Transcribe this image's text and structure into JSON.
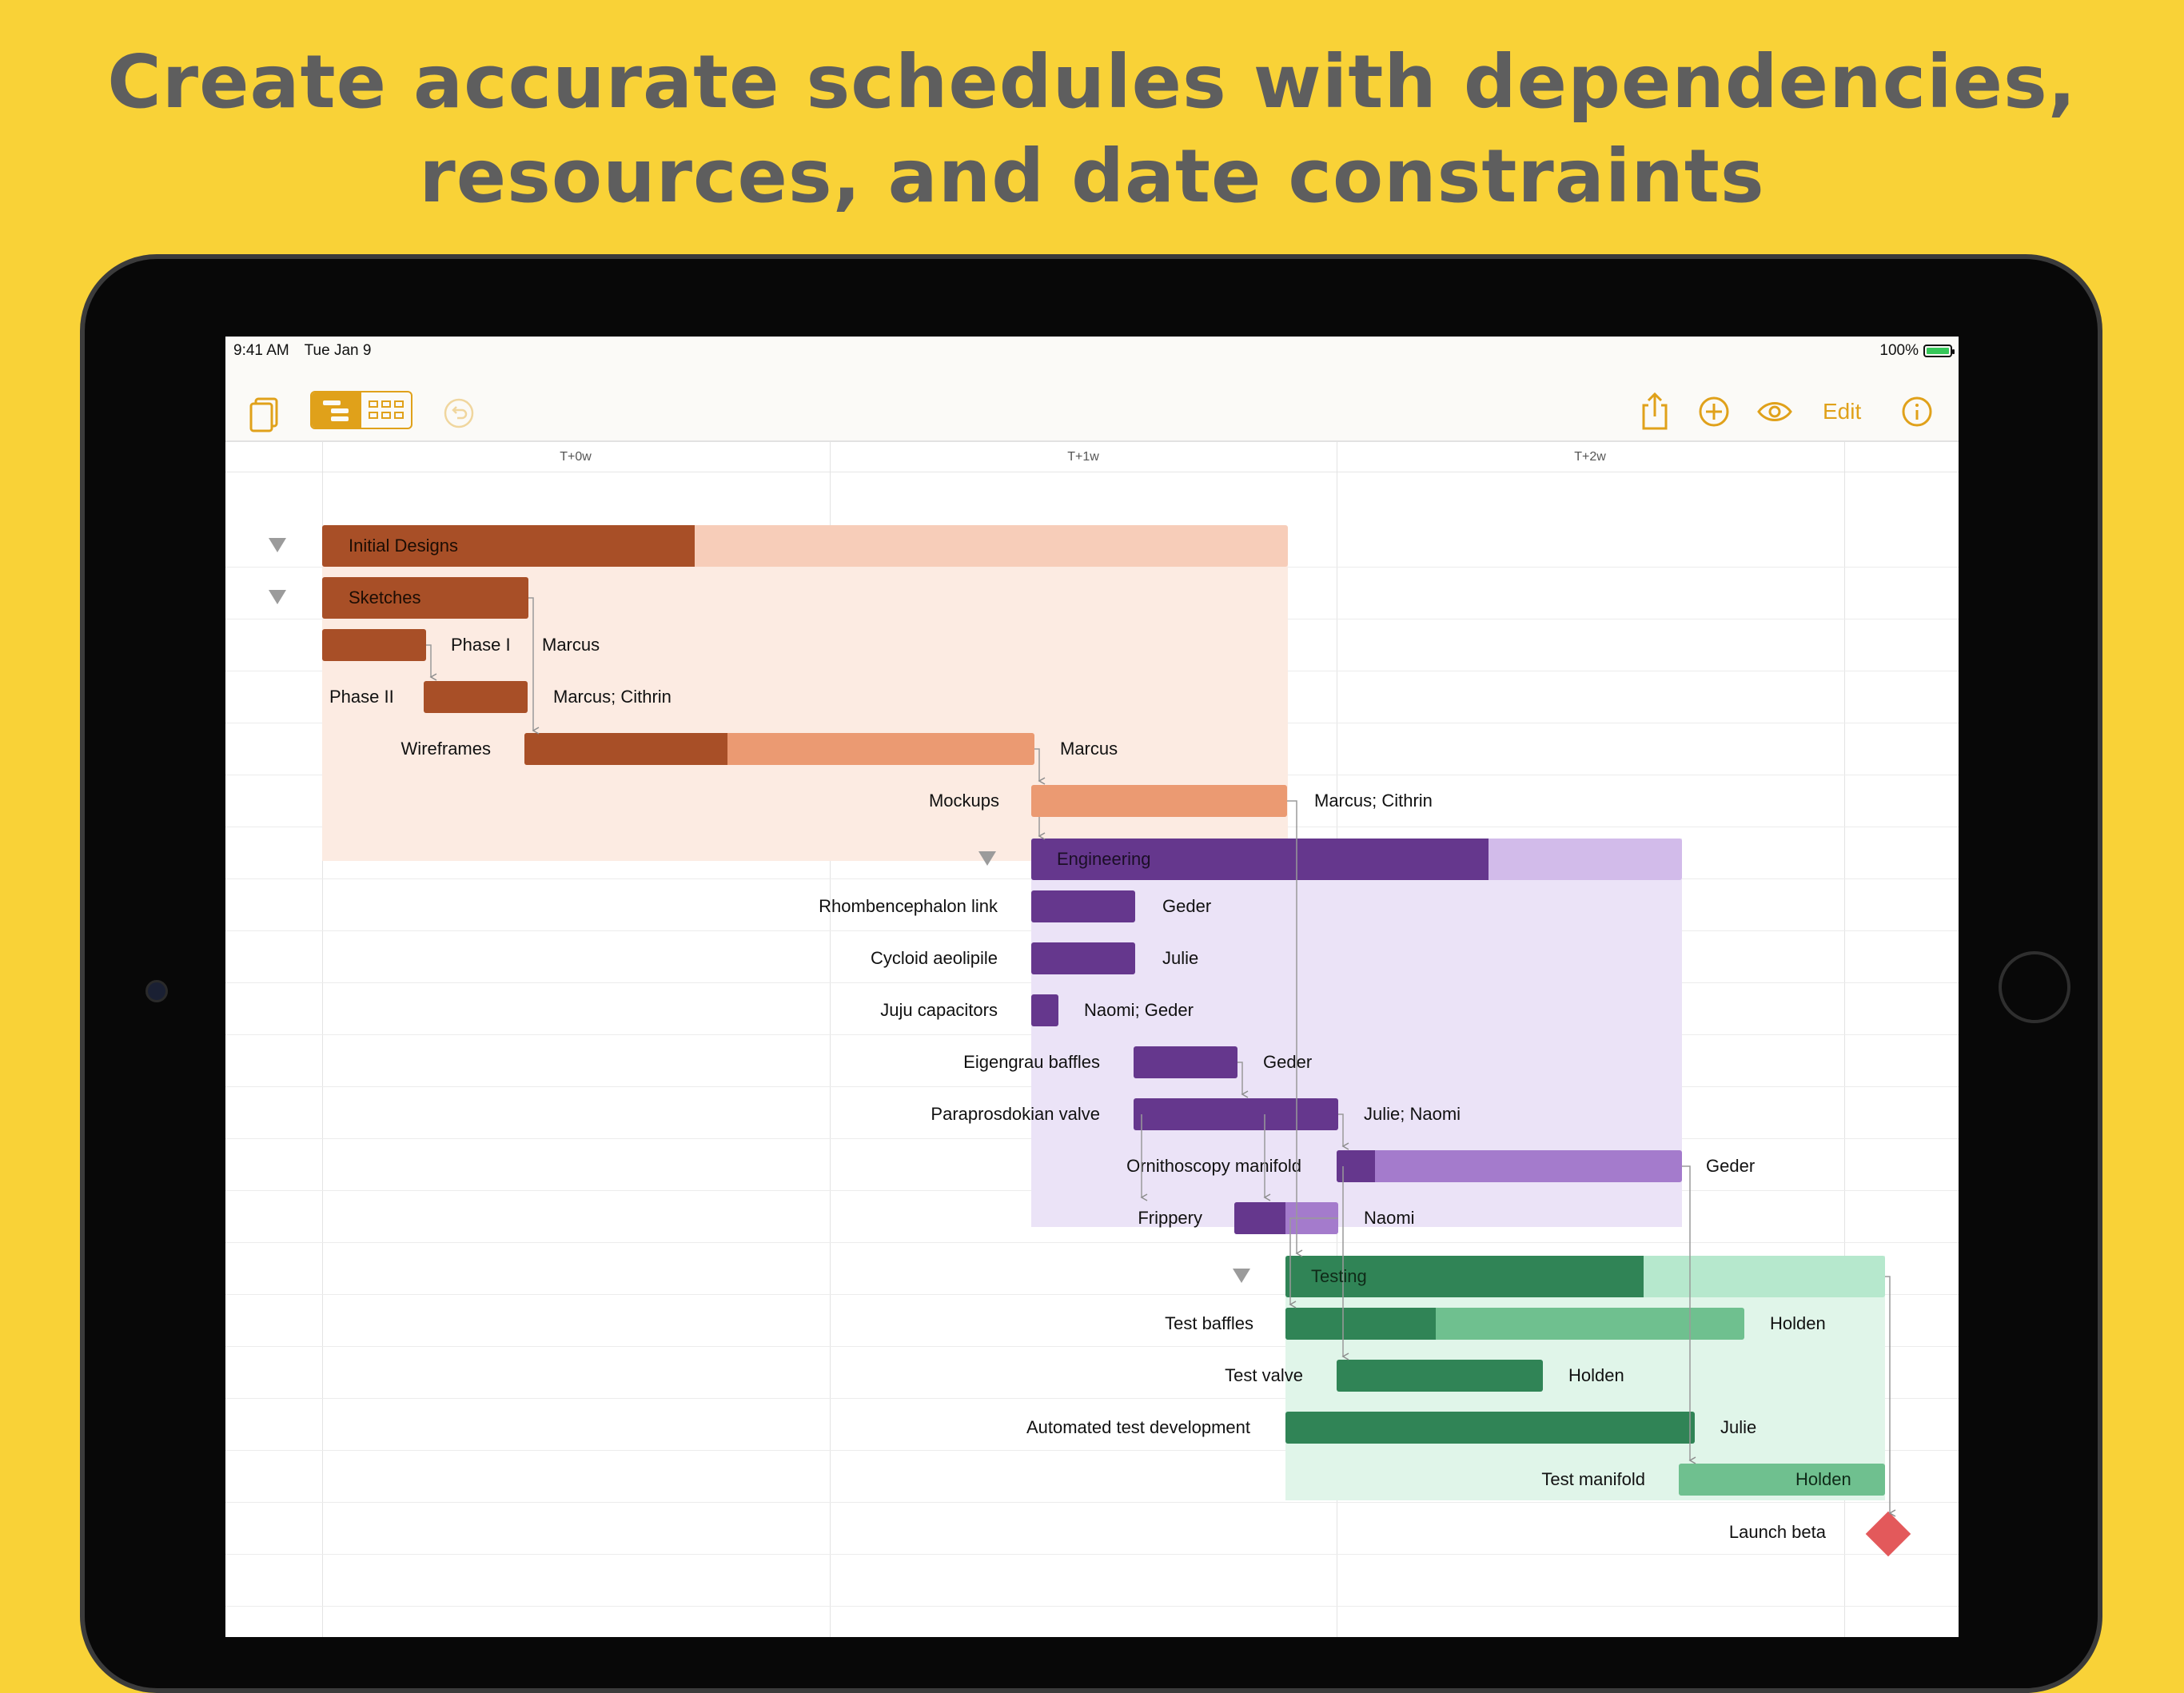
{
  "headline": {
    "line1": "Create accurate schedules with dependencies,",
    "line2": "resources, and date constraints"
  },
  "status_bar": {
    "time": "9:41 AM",
    "date": "Tue Jan 9",
    "battery": "100%"
  },
  "toolbar": {
    "edit_label": "Edit",
    "icons": [
      "documents-icon",
      "outline-view-icon",
      "network-view-icon",
      "undo-icon",
      "share-icon",
      "add-icon",
      "view-eye-icon",
      "info-icon"
    ]
  },
  "timeline": {
    "ticks": [
      "T+0w",
      "T+1w",
      "T+2w"
    ]
  },
  "groups": {
    "initial_designs": {
      "name": "Initial Designs",
      "color": "#a84f27",
      "light": "#f7cdb9",
      "bg": "#fcebe2"
    },
    "sketches": {
      "name": "Sketches",
      "color": "#a84f27"
    },
    "engineering": {
      "name": "Engineering",
      "color": "#65378d",
      "light": "#d2bbea",
      "bg": "#ebe3f7"
    },
    "testing": {
      "name": "Testing",
      "color": "#308456",
      "light": "#b6e8cd",
      "bg": "#e0f5e9"
    }
  },
  "tasks": {
    "phase1": {
      "name": "Phase I",
      "resource": "Marcus"
    },
    "phase2": {
      "name": "Phase II",
      "resource": "Marcus; Cithrin"
    },
    "wireframes": {
      "name": "Wireframes",
      "resource": "Marcus"
    },
    "mockups": {
      "name": "Mockups",
      "resource": "Marcus; Cithrin"
    },
    "rhomb": {
      "name": "Rhombencephalon link",
      "resource": "Geder"
    },
    "cycloid": {
      "name": "Cycloid aeolipile",
      "resource": "Julie"
    },
    "juju": {
      "name": "Juju capacitors",
      "resource": "Naomi; Geder"
    },
    "eigen": {
      "name": "Eigengrau baffles",
      "resource": "Geder"
    },
    "parapros": {
      "name": "Paraprosdokian valve",
      "resource": "Julie; Naomi"
    },
    "ornitho": {
      "name": "Ornithoscopy manifold",
      "resource": "Geder"
    },
    "frippery": {
      "name": "Frippery",
      "resource": "Naomi"
    },
    "test_baffles": {
      "name": "Test baffles",
      "resource": "Holden"
    },
    "test_valve": {
      "name": "Test valve",
      "resource": "Holden"
    },
    "auto_test": {
      "name": "Automated test development",
      "resource": "Julie"
    },
    "test_manifold": {
      "name": "Test manifold",
      "resource": "Holden"
    },
    "launch": {
      "name": "Launch beta",
      "color": "#e3595b"
    }
  }
}
